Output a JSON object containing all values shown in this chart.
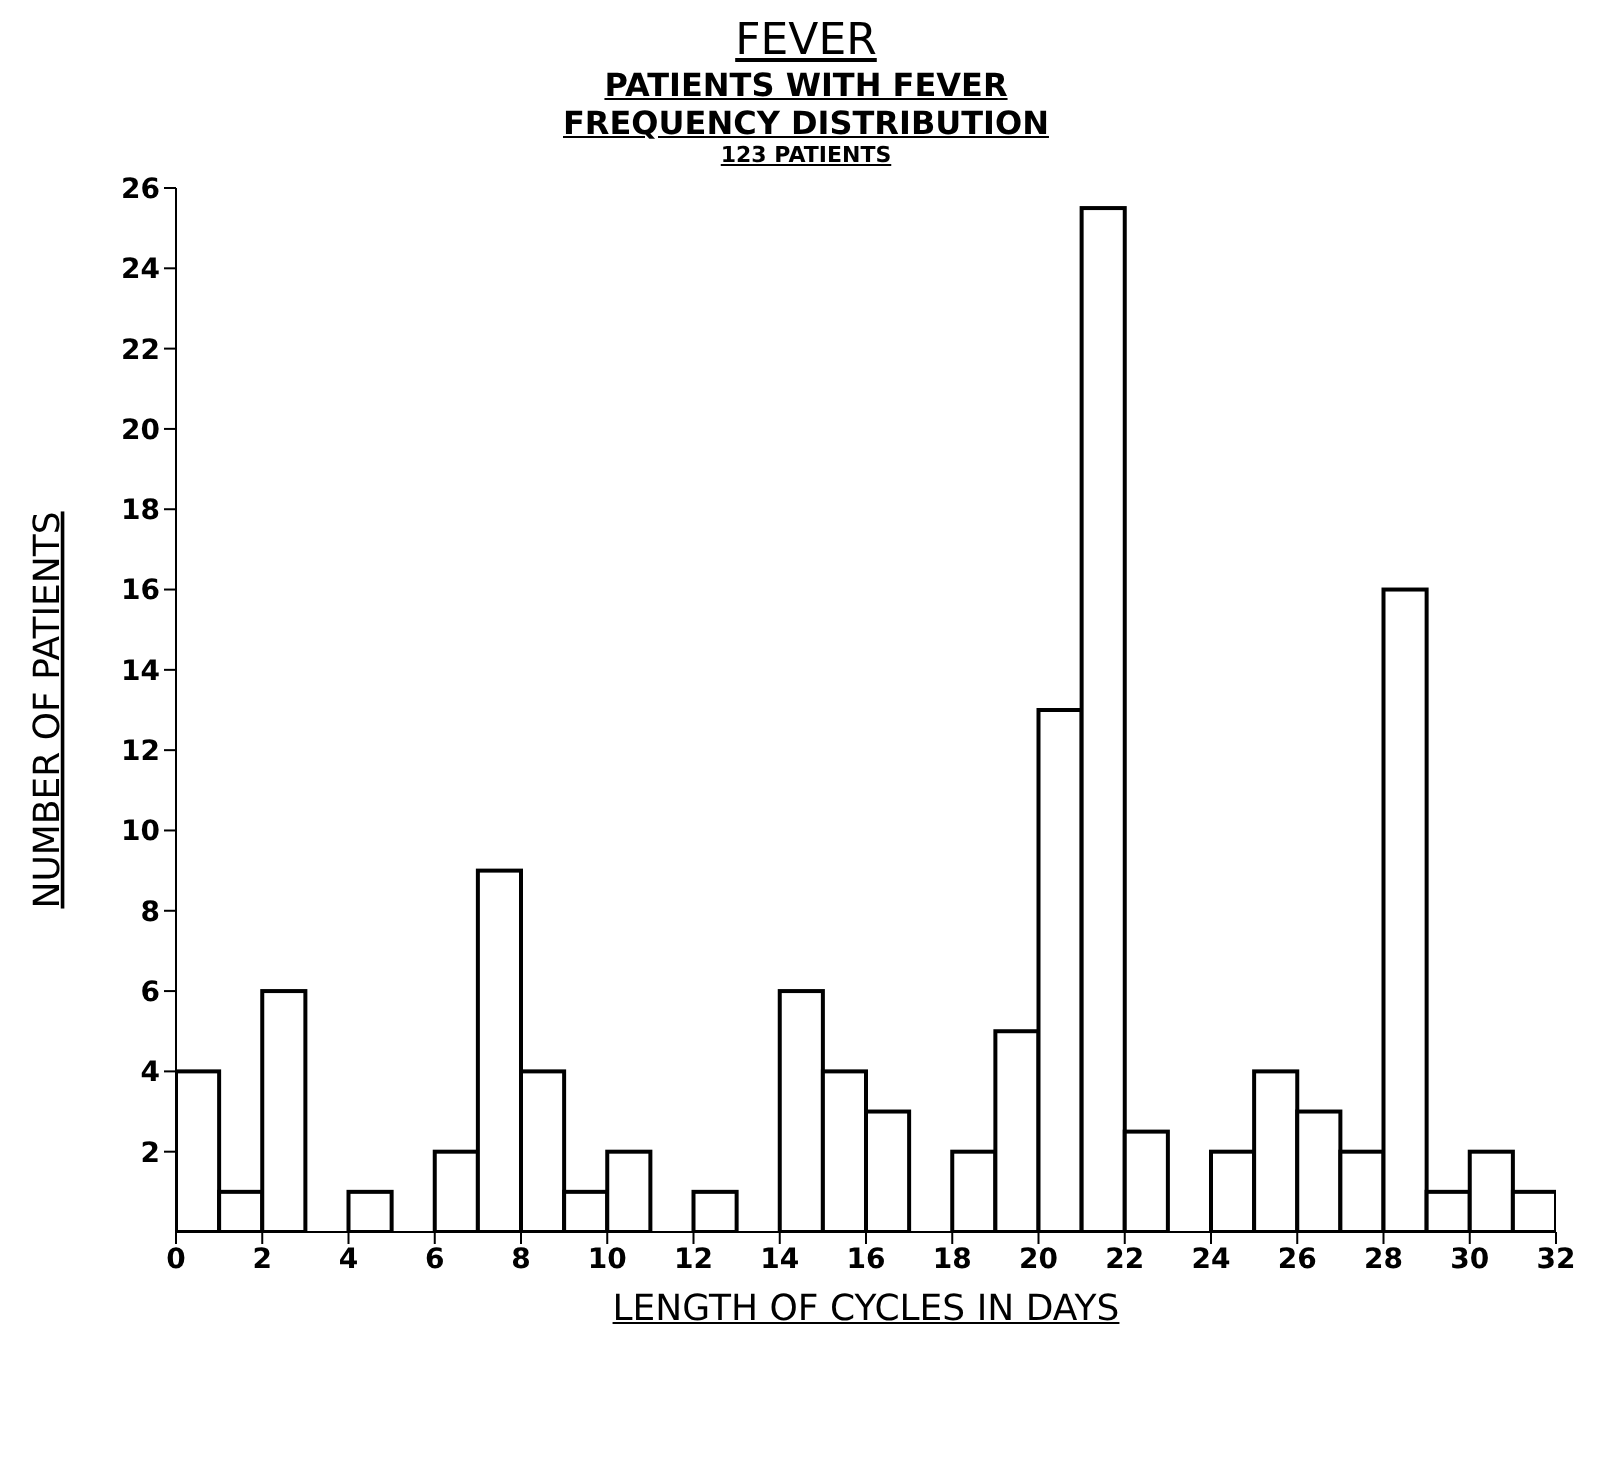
{
  "chart_data": {
    "type": "histogram",
    "title": "FEVER",
    "subtitle": "PATIENTS WITH FEVER\nFREQUENCY DISTRIBUTION",
    "annotations": [
      "123 PATIENTS"
    ],
    "xlabel": "LENGTH OF CYCLES IN DAYS",
    "ylabel": "NUMBER OF PATIENTS",
    "bins": [
      0,
      1,
      2,
      3,
      4,
      5,
      6,
      7,
      8,
      9,
      10,
      11,
      12,
      13,
      14,
      15,
      16,
      17,
      18,
      19,
      20,
      21,
      22,
      23,
      24,
      25,
      26,
      27,
      28,
      29,
      30,
      31,
      32
    ],
    "values": [
      4,
      1,
      6,
      0,
      1,
      0,
      2,
      9,
      4,
      1,
      2,
      0,
      1,
      0,
      6,
      4,
      3,
      0,
      2,
      5,
      13,
      25.5,
      2.5,
      0,
      2,
      4,
      3,
      2,
      16,
      1,
      2,
      1
    ],
    "color": "#ffffff",
    "xlim": [
      0,
      32
    ],
    "xticks": [
      0,
      2,
      4,
      6,
      8,
      10,
      12,
      14,
      16,
      18,
      20,
      22,
      24,
      26,
      28,
      30,
      32
    ],
    "ylim": [
      0,
      26
    ],
    "yticks": [
      2,
      4,
      6,
      8,
      10,
      12,
      14,
      16,
      18,
      20,
      22,
      24,
      26
    ],
    "grid": false
  }
}
